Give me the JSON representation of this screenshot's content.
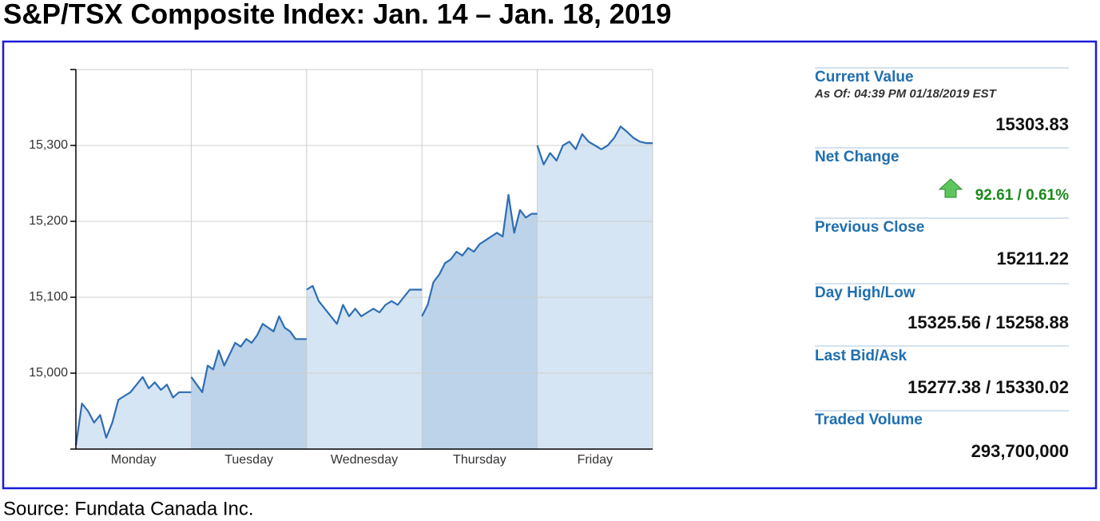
{
  "title": "S&P/TSX Composite Index: Jan. 14 – Jan. 18, 2019",
  "source": "Source: Fundata Canada Inc.",
  "chart_data": {
    "type": "area",
    "categories": [
      "Monday",
      "Tuesday",
      "Wednesday",
      "Thursday",
      "Friday"
    ],
    "values": [
      [
        14905,
        14960,
        14950,
        14935,
        14945,
        14915,
        14935,
        14965,
        14970,
        14975,
        14985,
        14995,
        14980,
        14988,
        14978,
        14985,
        14968,
        14975,
        14975,
        14975
      ],
      [
        14995,
        14985,
        14975,
        15010,
        15005,
        15030,
        15010,
        15025,
        15040,
        15035,
        15045,
        15040,
        15050,
        15065,
        15060,
        15055,
        15075,
        15060,
        15055,
        15045,
        15045,
        15045
      ],
      [
        15110,
        15115,
        15095,
        15085,
        15075,
        15065,
        15090,
        15075,
        15085,
        15075,
        15080,
        15085,
        15080,
        15090,
        15095,
        15090,
        15100,
        15110,
        15110,
        15110
      ],
      [
        15075,
        15090,
        15120,
        15130,
        15145,
        15150,
        15160,
        15155,
        15165,
        15160,
        15170,
        15175,
        15180,
        15185,
        15180,
        15235,
        15185,
        15215,
        15205,
        15210,
        15210
      ],
      [
        15300,
        15275,
        15290,
        15280,
        15300,
        15305,
        15295,
        15315,
        15305,
        15300,
        15295,
        15300,
        15310,
        15325,
        15318,
        15310,
        15305,
        15303,
        15303
      ]
    ],
    "ylim": [
      14900,
      15400
    ],
    "yticks": [
      {
        "value": 15000,
        "label": "15,000"
      },
      {
        "value": 15100,
        "label": "15,100"
      },
      {
        "value": 15200,
        "label": "15,200"
      },
      {
        "value": 15300,
        "label": "15,300"
      }
    ],
    "color": "#2e6db4",
    "area_colors": [
      "#d6e5f3",
      "#bcd3e9",
      "#d6e5f3",
      "#bcd3e9",
      "#d6e5f3"
    ],
    "grid": true
  },
  "panel": {
    "items": [
      {
        "label": "Current Value",
        "note": "As Of: 04:39 PM 01/18/2019 EST",
        "value": "15303.83"
      },
      {
        "label": "Net Change",
        "value": "92.61 / 0.61%"
      },
      {
        "label": "Previous Close",
        "value": "15211.22"
      },
      {
        "label": "Day High/Low",
        "value": "15325.56 / 15258.88"
      },
      {
        "label": "Last Bid/Ask",
        "value": "15277.38 / 15330.02"
      },
      {
        "label": "Traded Volume",
        "value": "293,700,000"
      }
    ]
  }
}
